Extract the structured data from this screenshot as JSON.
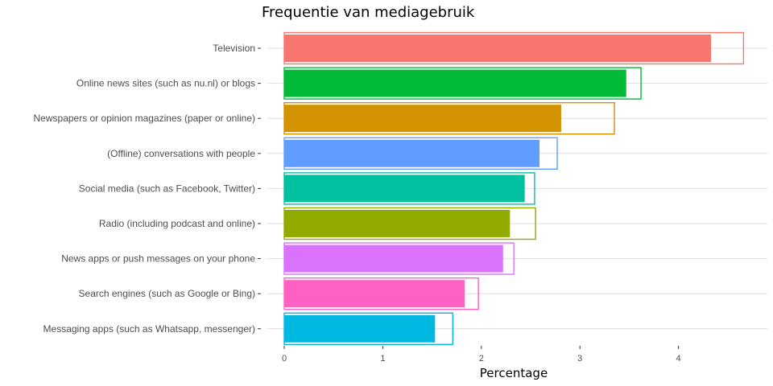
{
  "chart_data": {
    "type": "bar",
    "orientation": "horizontal",
    "title": "Frequentie van mediagebruik",
    "xlabel": "Percentage",
    "ylabel": "",
    "xlim": [
      0,
      4.7
    ],
    "xticks": [
      0,
      1,
      2,
      3,
      4
    ],
    "grid": true,
    "categories": [
      "Television",
      "Online news sites (such as nu.nl) or blogs",
      "Newspapers or opinion magazines (paper or online)",
      "(Offline) conversations with people",
      "Social media (such as Facebook, Twitter)",
      "Radio (including podcast and online)",
      "News apps or push messages on your phone",
      "Search engines (such as Google or Bing)",
      "Messaging apps (such as Whatsapp, messenger)"
    ],
    "colors": [
      "#F8766D",
      "#00BA38",
      "#D39200",
      "#619CFF",
      "#00C19F",
      "#93AA00",
      "#DB72FB",
      "#FF61C3",
      "#00B9E3"
    ],
    "series": [
      {
        "values": [
          4.33,
          3.47,
          2.81,
          2.59,
          2.44,
          2.29,
          2.22,
          1.83,
          1.53
        ]
      },
      {
        "values": [
          4.66,
          3.62,
          3.35,
          2.77,
          2.54,
          2.55,
          2.33,
          1.97,
          1.71
        ]
      }
    ]
  }
}
